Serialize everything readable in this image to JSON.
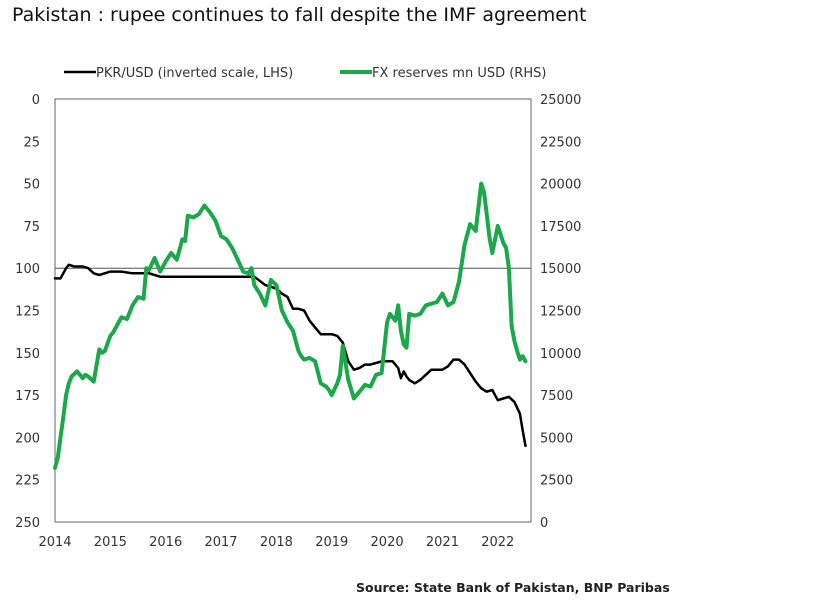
{
  "chart_data": {
    "type": "line",
    "title": "Pakistan :  rupee continues to fall despite the IMF agreement",
    "source": "Source: State Bank of Pakistan, BNP Paribas",
    "x_axis": {
      "range": [
        2014.0,
        2022.6
      ],
      "ticks": [
        2014,
        2015,
        2016,
        2017,
        2018,
        2019,
        2020,
        2021,
        2022
      ],
      "tick_labels": [
        "2014",
        "2015",
        "2016",
        "2017",
        "2018",
        "2019",
        "2020",
        "2021",
        "2022"
      ]
    },
    "y_left": {
      "label": "PKR/USD (inverted scale, LHS)",
      "inverted": true,
      "range": [
        0,
        250
      ],
      "ticks": [
        0,
        25,
        50,
        75,
        100,
        125,
        150,
        175,
        200,
        225,
        250
      ],
      "tick_labels": [
        "0",
        "25",
        "50",
        "75",
        "100",
        "125",
        "150",
        "175",
        "200",
        "225",
        "250"
      ]
    },
    "y_right": {
      "label": "FX reserves mn USD (RHS)",
      "range": [
        0,
        25000
      ],
      "ticks": [
        0,
        2500,
        5000,
        7500,
        10000,
        12500,
        15000,
        17500,
        20000,
        22500,
        25000
      ],
      "tick_labels": [
        "0",
        "2500",
        "5000",
        "7500",
        "10000",
        "12500",
        "15000",
        "17500",
        "20000",
        "22500",
        "25000"
      ]
    },
    "reference_line": {
      "axis": "left",
      "value": 100
    },
    "series": [
      {
        "name": "PKR/USD (inverted scale, LHS)",
        "axis": "left",
        "color": "#000000",
        "x": [
          2014.0,
          2014.1,
          2014.2,
          2014.25,
          2014.35,
          2014.5,
          2014.6,
          2014.7,
          2014.8,
          2014.9,
          2015.0,
          2015.2,
          2015.4,
          2015.5,
          2015.6,
          2015.7,
          2015.8,
          2015.9,
          2016.0,
          2016.2,
          2016.5,
          2016.8,
          2017.0,
          2017.3,
          2017.5,
          2017.6,
          2017.8,
          2017.9,
          2018.0,
          2018.1,
          2018.2,
          2018.3,
          2018.4,
          2018.5,
          2018.6,
          2018.7,
          2018.8,
          2018.9,
          2019.0,
          2019.1,
          2019.2,
          2019.3,
          2019.4,
          2019.5,
          2019.6,
          2019.7,
          2019.8,
          2019.9,
          2020.0,
          2020.1,
          2020.2,
          2020.25,
          2020.3,
          2020.35,
          2020.4,
          2020.5,
          2020.6,
          2020.7,
          2020.8,
          2020.9,
          2021.0,
          2021.1,
          2021.2,
          2021.3,
          2021.4,
          2021.5,
          2021.6,
          2021.7,
          2021.8,
          2021.9,
          2022.0,
          2022.1,
          2022.2,
          2022.3,
          2022.4,
          2022.45,
          2022.5
        ],
        "values": [
          106,
          106,
          100,
          98,
          99,
          99,
          100,
          103,
          104,
          103,
          102,
          102,
          103,
          103,
          103,
          103,
          104,
          105,
          105,
          105,
          105,
          105,
          105,
          105,
          105,
          105,
          110,
          111,
          112,
          115,
          117,
          124,
          124,
          125,
          131,
          135,
          139,
          139,
          139,
          140,
          144,
          155,
          160,
          159,
          157,
          157,
          156,
          155,
          155,
          155,
          159,
          165,
          161,
          164,
          166,
          168,
          166,
          163,
          160,
          160,
          160,
          158,
          154,
          154,
          157,
          162,
          167,
          171,
          173,
          172,
          178,
          177,
          176,
          179,
          186,
          196,
          205
        ]
      },
      {
        "name": "FX reserves mn USD (RHS)",
        "axis": "right",
        "color": "#1aa84a",
        "x": [
          2014.0,
          2014.05,
          2014.1,
          2014.15,
          2014.2,
          2014.25,
          2014.3,
          2014.4,
          2014.5,
          2014.55,
          2014.6,
          2014.7,
          2014.8,
          2014.85,
          2014.9,
          2015.0,
          2015.05,
          2015.1,
          2015.2,
          2015.3,
          2015.4,
          2015.5,
          2015.6,
          2015.65,
          2015.7,
          2015.8,
          2015.9,
          2016.0,
          2016.1,
          2016.2,
          2016.3,
          2016.35,
          2016.4,
          2016.5,
          2016.6,
          2016.7,
          2016.75,
          2016.8,
          2016.9,
          2017.0,
          2017.1,
          2017.2,
          2017.3,
          2017.4,
          2017.5,
          2017.55,
          2017.6,
          2017.7,
          2017.8,
          2017.9,
          2018.0,
          2018.1,
          2018.2,
          2018.3,
          2018.4,
          2018.45,
          2018.5,
          2018.6,
          2018.7,
          2018.8,
          2018.9,
          2018.95,
          2019.0,
          2019.1,
          2019.15,
          2019.2,
          2019.3,
          2019.4,
          2019.5,
          2019.6,
          2019.7,
          2019.8,
          2019.9,
          2020.0,
          2020.05,
          2020.1,
          2020.15,
          2020.2,
          2020.25,
          2020.3,
          2020.35,
          2020.4,
          2020.5,
          2020.6,
          2020.7,
          2020.8,
          2020.9,
          2021.0,
          2021.1,
          2021.2,
          2021.3,
          2021.4,
          2021.5,
          2021.6,
          2021.7,
          2021.75,
          2021.8,
          2021.85,
          2021.9,
          2022.0,
          2022.1,
          2022.15,
          2022.2,
          2022.25,
          2022.3,
          2022.35,
          2022.4,
          2022.45,
          2022.5
        ],
        "values": [
          3200,
          3800,
          5000,
          6200,
          7500,
          8200,
          8600,
          8900,
          8500,
          8700,
          8600,
          8300,
          10200,
          10000,
          10100,
          11000,
          11200,
          11500,
          12100,
          12000,
          12800,
          13300,
          13200,
          15000,
          14900,
          15600,
          14800,
          15400,
          15900,
          15500,
          16700,
          16600,
          18100,
          18000,
          18200,
          18700,
          18500,
          18300,
          17800,
          16900,
          16700,
          16200,
          15500,
          14800,
          14700,
          15000,
          14000,
          13500,
          12800,
          14300,
          14000,
          12500,
          11800,
          11300,
          10100,
          9800,
          9600,
          9700,
          9500,
          8200,
          8000,
          7800,
          7500,
          8200,
          8700,
          10400,
          8400,
          7300,
          7700,
          8100,
          8000,
          8700,
          8800,
          11800,
          12300,
          12100,
          11900,
          12800,
          11300,
          10500,
          10300,
          12300,
          12200,
          12300,
          12800,
          12900,
          13000,
          13500,
          12800,
          13000,
          14200,
          16400,
          17600,
          17200,
          20000,
          19500,
          18200,
          16800,
          15900,
          17500,
          16500,
          16200,
          15000,
          11600,
          10700,
          10100,
          9600,
          9800,
          9500
        ]
      }
    ]
  }
}
